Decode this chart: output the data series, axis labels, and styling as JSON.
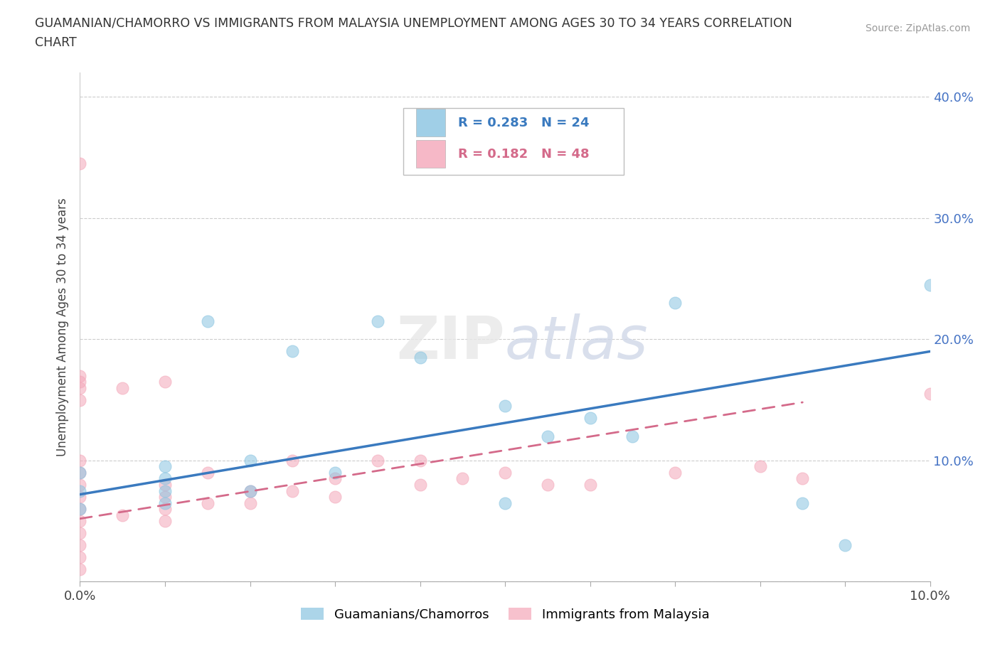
{
  "title_line1": "GUAMANIAN/CHAMORRO VS IMMIGRANTS FROM MALAYSIA UNEMPLOYMENT AMONG AGES 30 TO 34 YEARS CORRELATION",
  "title_line2": "CHART",
  "source": "Source: ZipAtlas.com",
  "ylabel": "Unemployment Among Ages 30 to 34 years",
  "xlim": [
    0.0,
    0.1
  ],
  "ylim": [
    0.0,
    0.42
  ],
  "x_ticks": [
    0.0,
    0.01,
    0.02,
    0.03,
    0.04,
    0.05,
    0.06,
    0.07,
    0.08,
    0.09,
    0.1
  ],
  "x_tick_labels": [
    "0.0%",
    "",
    "",
    "",
    "",
    "",
    "",
    "",
    "",
    "",
    "10.0%"
  ],
  "y_ticks": [
    0.0,
    0.1,
    0.2,
    0.3,
    0.4
  ],
  "y_tick_labels": [
    "",
    "10.0%",
    "20.0%",
    "30.0%",
    "40.0%"
  ],
  "blue_color": "#89c4e1",
  "pink_color": "#f4a7b9",
  "blue_line_color": "#3a7abf",
  "pink_line_color": "#d46a8a",
  "tick_color": "#4472c4",
  "blue_x": [
    0.0,
    0.0,
    0.0,
    0.01,
    0.01,
    0.01,
    0.01,
    0.015,
    0.02,
    0.02,
    0.025,
    0.03,
    0.035,
    0.04,
    0.05,
    0.05,
    0.055,
    0.06,
    0.065,
    0.07,
    0.085,
    0.09,
    0.1
  ],
  "blue_y": [
    0.06,
    0.075,
    0.09,
    0.065,
    0.075,
    0.085,
    0.095,
    0.215,
    0.075,
    0.1,
    0.19,
    0.09,
    0.215,
    0.185,
    0.065,
    0.145,
    0.12,
    0.135,
    0.12,
    0.23,
    0.065,
    0.03,
    0.245
  ],
  "pink_x": [
    0.0,
    0.0,
    0.0,
    0.0,
    0.0,
    0.0,
    0.0,
    0.0,
    0.0,
    0.0,
    0.0,
    0.0,
    0.0,
    0.0,
    0.0,
    0.005,
    0.005,
    0.01,
    0.01,
    0.01,
    0.01,
    0.01,
    0.015,
    0.015,
    0.02,
    0.02,
    0.025,
    0.025,
    0.03,
    0.03,
    0.035,
    0.04,
    0.04,
    0.045,
    0.05,
    0.055,
    0.06,
    0.07,
    0.08,
    0.085,
    0.1
  ],
  "pink_y": [
    0.01,
    0.02,
    0.03,
    0.04,
    0.05,
    0.06,
    0.07,
    0.08,
    0.09,
    0.1,
    0.15,
    0.16,
    0.17,
    0.345,
    0.165,
    0.055,
    0.16,
    0.05,
    0.06,
    0.07,
    0.08,
    0.165,
    0.065,
    0.09,
    0.065,
    0.075,
    0.075,
    0.1,
    0.07,
    0.085,
    0.1,
    0.08,
    0.1,
    0.085,
    0.09,
    0.08,
    0.08,
    0.09,
    0.095,
    0.085,
    0.155
  ],
  "blue_trend_x": [
    0.0,
    0.1
  ],
  "blue_trend_y": [
    0.072,
    0.19
  ],
  "pink_trend_x": [
    0.0,
    0.085
  ],
  "pink_trend_y": [
    0.052,
    0.148
  ],
  "grid_color": "#cccccc",
  "bg_color": "#ffffff",
  "legend_labels": [
    "Guamanians/Chamorros",
    "Immigrants from Malaysia"
  ]
}
